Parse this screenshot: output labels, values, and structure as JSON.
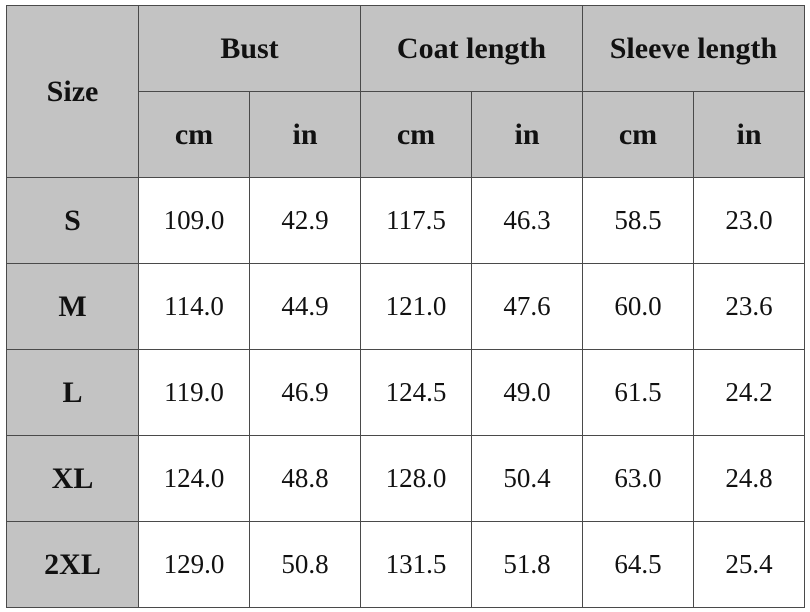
{
  "header": {
    "size": "Size",
    "groups": [
      "Bust",
      "Coat length",
      "Sleeve length"
    ],
    "units": [
      "cm",
      "in",
      "cm",
      "in",
      "cm",
      "in"
    ]
  },
  "table": {
    "rows": [
      [
        "S",
        "109.0",
        "42.9",
        "117.5",
        "46.3",
        "58.5",
        "23.0"
      ],
      [
        "M",
        "114.0",
        "44.9",
        "121.0",
        "47.6",
        "60.0",
        "23.6"
      ],
      [
        "L",
        "119.0",
        "46.9",
        "124.5",
        "49.0",
        "61.5",
        "24.2"
      ],
      [
        "XL",
        "124.0",
        "48.8",
        "128.0",
        "50.4",
        "63.0",
        "24.8"
      ],
      [
        "2XL",
        "129.0",
        "50.8",
        "131.5",
        "51.8",
        "64.5",
        "25.4"
      ]
    ]
  }
}
